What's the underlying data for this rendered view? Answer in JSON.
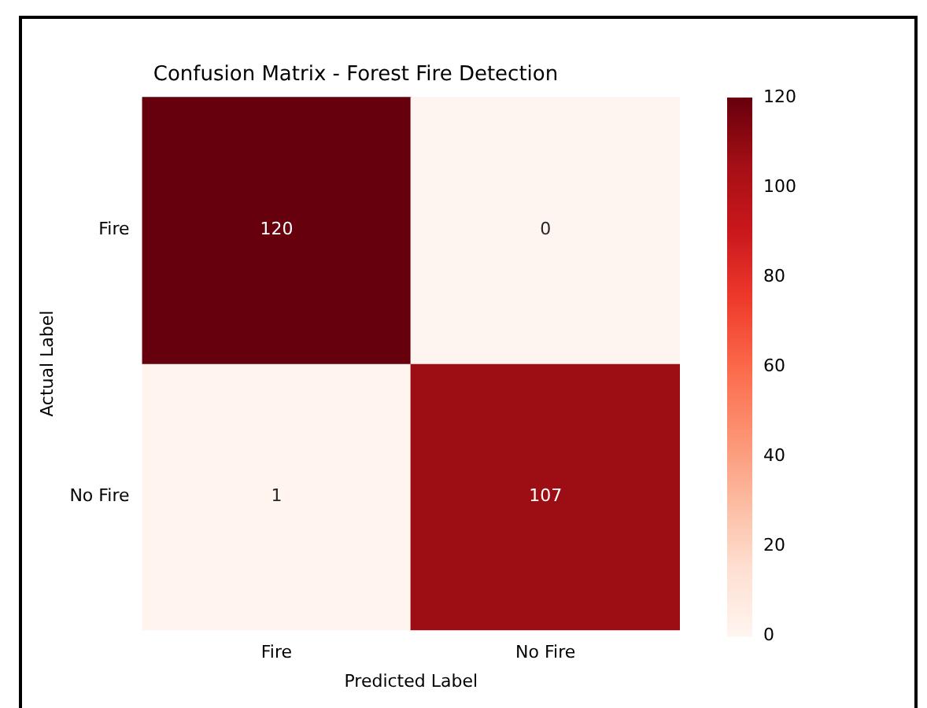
{
  "chart_data": {
    "type": "heatmap",
    "title": "Confusion Matrix - Forest Fire Detection",
    "xlabel": "Predicted Label",
    "ylabel": "Actual Label",
    "categories": [
      "Fire",
      "No Fire"
    ],
    "y_categories": [
      "Fire",
      "No Fire"
    ],
    "cells": [
      [
        120,
        0
      ],
      [
        1,
        107
      ]
    ],
    "clim": [
      0,
      120
    ],
    "cticks": [
      0,
      20,
      40,
      60,
      80,
      100,
      120
    ],
    "data_labels": true
  }
}
